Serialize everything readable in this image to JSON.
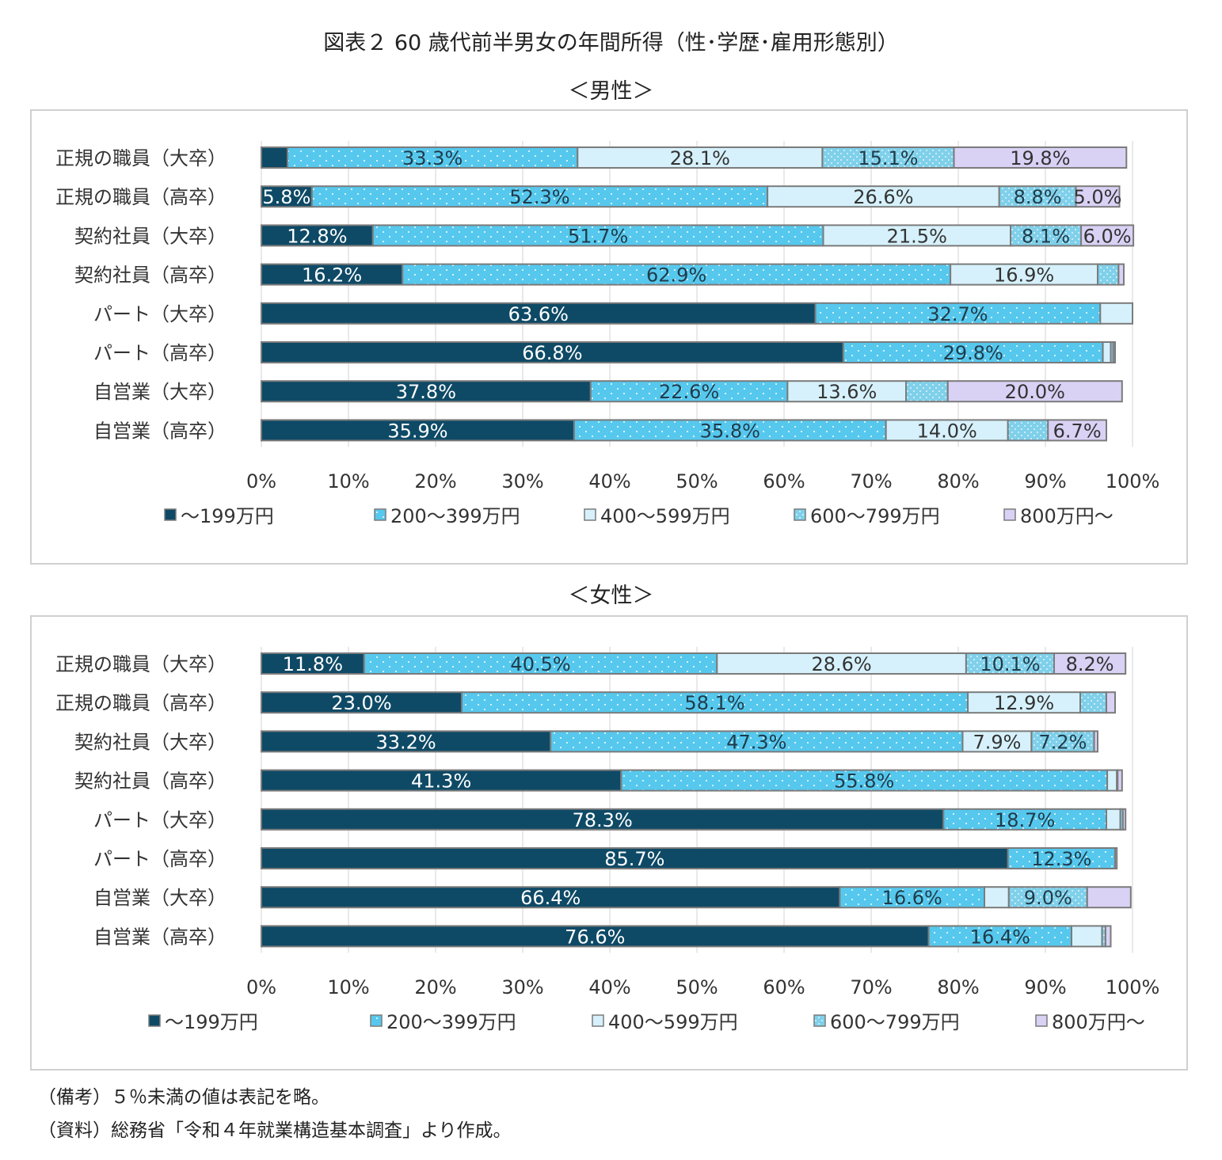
{
  "title": "図表２ 60 歳代前半男女の年間所得（性･学歴･雇用形態別）",
  "legend": [
    "～199万円",
    "200～399万円",
    "400～599万円",
    "600～799万円",
    "800万円～"
  ],
  "colors": {
    "s1": "#0e4a66",
    "s2": "#56c8ee",
    "s3": "#d6f1fb",
    "s4": "#7fd0ea",
    "s5": "#d9d2f5",
    "border": "#7b7b7b"
  },
  "chart_data": [
    {
      "type": "bar",
      "orientation": "horizontal-stacked-100",
      "title": "＜男性＞",
      "xlim": [
        0,
        100
      ],
      "xticks": [
        "0%",
        "10%",
        "20%",
        "30%",
        "40%",
        "50%",
        "60%",
        "70%",
        "80%",
        "90%",
        "100%"
      ],
      "categories": [
        "正規の職員（大卒）",
        "正規の職員（高卒）",
        "契約社員（大卒）",
        "契約社員（高卒）",
        "パート（大卒）",
        "パート（高卒）",
        "自営業（大卒）",
        "自営業（高卒）"
      ],
      "series": [
        {
          "name": "～199万円",
          "values": [
            3.0,
            5.8,
            12.8,
            16.2,
            63.6,
            66.8,
            37.8,
            35.9
          ],
          "labels": [
            "",
            "5.8%",
            "12.8%",
            "16.2%",
            "63.6%",
            "66.8%",
            "37.8%",
            "35.9%"
          ]
        },
        {
          "name": "200～399万円",
          "values": [
            33.3,
            52.3,
            51.7,
            62.9,
            32.7,
            29.8,
            22.6,
            35.8
          ],
          "labels": [
            "33.3%",
            "52.3%",
            "51.7%",
            "62.9%",
            "32.7%",
            "29.8%",
            "22.6%",
            "35.8%"
          ]
        },
        {
          "name": "400～599万円",
          "values": [
            28.1,
            26.6,
            21.5,
            16.9,
            3.7,
            0.9,
            13.6,
            14.0
          ],
          "labels": [
            "28.1%",
            "26.6%",
            "21.5%",
            "16.9%",
            "",
            "",
            "13.6%",
            "14.0%"
          ]
        },
        {
          "name": "600～799万円",
          "values": [
            15.1,
            8.8,
            8.1,
            2.4,
            0.0,
            0.3,
            4.8,
            4.6
          ],
          "labels": [
            "15.1%",
            "8.8%",
            "8.1%",
            "",
            "",
            "",
            "",
            ""
          ]
        },
        {
          "name": "800万円～",
          "values": [
            19.8,
            5.0,
            6.0,
            0.6,
            0.0,
            0.2,
            20.0,
            6.7
          ],
          "labels": [
            "19.8%",
            "5.0%",
            "6.0%",
            "",
            "",
            "",
            "20.0%",
            "6.7%"
          ]
        }
      ]
    },
    {
      "type": "bar",
      "orientation": "horizontal-stacked-100",
      "title": "＜女性＞",
      "xlim": [
        0,
        100
      ],
      "xticks": [
        "0%",
        "10%",
        "20%",
        "30%",
        "40%",
        "50%",
        "60%",
        "70%",
        "80%",
        "90%",
        "100%"
      ],
      "categories": [
        "正規の職員（大卒）",
        "正規の職員（高卒）",
        "契約社員（大卒）",
        "契約社員（高卒）",
        "パート（大卒）",
        "パート（高卒）",
        "自営業（大卒）",
        "自営業（高卒）"
      ],
      "series": [
        {
          "name": "～199万円",
          "values": [
            11.8,
            23.0,
            33.2,
            41.3,
            78.3,
            85.7,
            66.4,
            76.6
          ],
          "labels": [
            "11.8%",
            "23.0%",
            "33.2%",
            "41.3%",
            "78.3%",
            "85.7%",
            "66.4%",
            "76.6%"
          ]
        },
        {
          "name": "200～399万円",
          "values": [
            40.5,
            58.1,
            47.3,
            55.8,
            18.7,
            12.3,
            16.6,
            16.4
          ],
          "labels": [
            "40.5%",
            "58.1%",
            "47.3%",
            "55.8%",
            "18.7%",
            "12.3%",
            "16.6%",
            "16.4%"
          ]
        },
        {
          "name": "400～599万円",
          "values": [
            28.6,
            12.9,
            7.9,
            1.1,
            1.6,
            0.0,
            2.8,
            3.5
          ],
          "labels": [
            "28.6%",
            "12.9%",
            "7.9%",
            "",
            "",
            "",
            "",
            ""
          ]
        },
        {
          "name": "600～799万円",
          "values": [
            10.1,
            3.0,
            7.2,
            0.1,
            0.3,
            0.0,
            9.0,
            0.4
          ],
          "labels": [
            "10.1%",
            "",
            "7.2%",
            "",
            "",
            "",
            "9.0%",
            ""
          ]
        },
        {
          "name": "800万円～",
          "values": [
            8.2,
            1.0,
            0.4,
            0.5,
            0.3,
            0.2,
            5.0,
            0.6
          ],
          "labels": [
            "8.2%",
            "",
            "",
            "",
            "",
            "",
            "",
            ""
          ]
        }
      ]
    }
  ],
  "notes": [
    "（備考）５％未満の値は表記を略。",
    "（資料）総務省「令和４年就業構造基本調査」より作成。"
  ]
}
